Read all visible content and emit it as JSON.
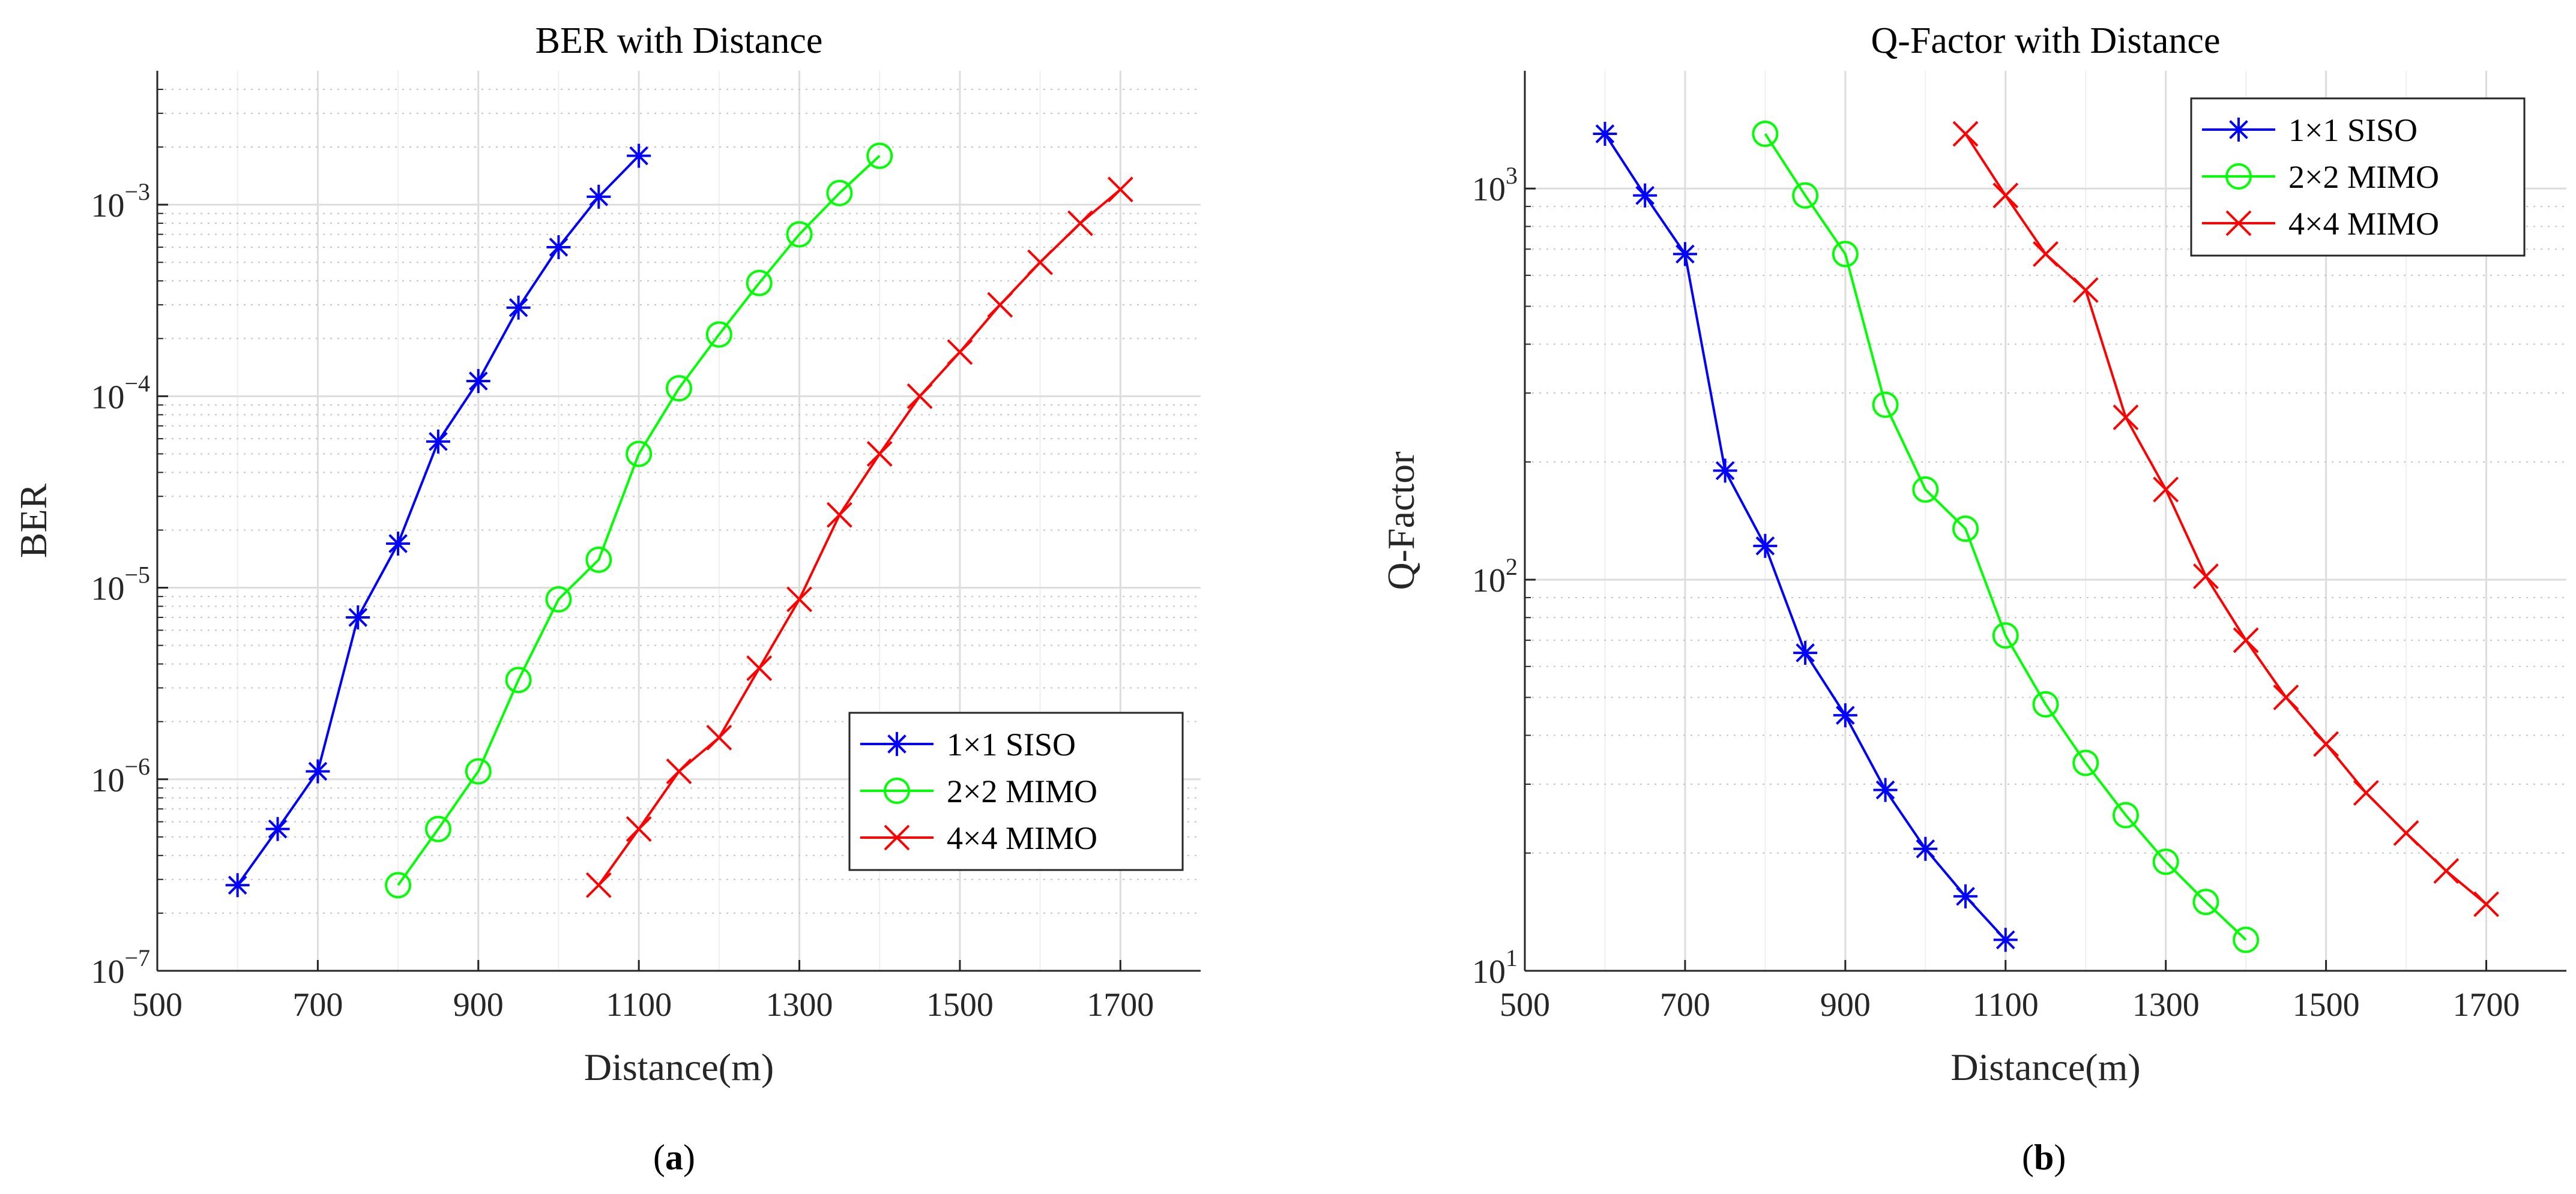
{
  "chart_data": [
    {
      "type": "line",
      "title": "BER with Distance",
      "xlabel": "Distance(m)",
      "ylabel": "BER",
      "xscale": "linear",
      "yscale": "log",
      "xlim": [
        500,
        1800
      ],
      "ylim": [
        1e-07,
        0.005
      ],
      "xticks": [
        500,
        700,
        900,
        1100,
        1300,
        1500,
        1700
      ],
      "yticks": [
        {
          "value": 1e-07,
          "base": "10",
          "exp": "−7"
        },
        {
          "value": 1e-06,
          "base": "10",
          "exp": "−6"
        },
        {
          "value": 1e-05,
          "base": "10",
          "exp": "−5"
        },
        {
          "value": 0.0001,
          "base": "10",
          "exp": "−4"
        },
        {
          "value": 0.001,
          "base": "10",
          "exp": "−3"
        }
      ],
      "grid": true,
      "legend_position": "lower-right",
      "series": [
        {
          "name": "1×1 SISO",
          "color": "#0000ff",
          "marker": "asterisk",
          "x": [
            600,
            650,
            700,
            750,
            800,
            850,
            900,
            950,
            1000,
            1050,
            1100
          ],
          "y": [
            2.8e-07,
            5.5e-07,
            1.1e-06,
            7e-06,
            1.7e-05,
            5.8e-05,
            0.00012,
            0.00029,
            0.0006,
            0.0011,
            0.0018
          ]
        },
        {
          "name": "2×2 MIMO",
          "color": "#00ff00",
          "marker": "circle",
          "x": [
            800,
            850,
            900,
            950,
            1000,
            1050,
            1100,
            1150,
            1200,
            1250,
            1300,
            1350,
            1400
          ],
          "y": [
            2.8e-07,
            5.5e-07,
            1.1e-06,
            3.3e-06,
            8.7e-06,
            1.4e-05,
            5e-05,
            0.00011,
            0.00021,
            0.00039,
            0.0007,
            0.00115,
            0.0018
          ]
        },
        {
          "name": "4×4 MIMO",
          "color": "#ff0000",
          "marker": "cross",
          "x": [
            1050,
            1100,
            1150,
            1200,
            1250,
            1300,
            1350,
            1400,
            1450,
            1500,
            1550,
            1600,
            1650,
            1700
          ],
          "y": [
            2.8e-07,
            5.5e-07,
            1.1e-06,
            1.65e-06,
            3.8e-06,
            8.7e-06,
            2.4e-05,
            5e-05,
            0.0001,
            0.00017,
            0.0003,
            0.0005,
            0.0008,
            0.0012
          ]
        }
      ]
    },
    {
      "type": "line",
      "title": "Q-Factor with Distance",
      "xlabel": "Distance(m)",
      "ylabel": "Q-Factor",
      "xscale": "linear",
      "yscale": "log",
      "xlim": [
        500,
        1800
      ],
      "ylim": [
        10,
        2000
      ],
      "xticks": [
        500,
        700,
        900,
        1100,
        1300,
        1500,
        1700
      ],
      "yticks": [
        {
          "value": 10,
          "base": "10",
          "exp": "1"
        },
        {
          "value": 100,
          "base": "10",
          "exp": "2"
        },
        {
          "value": 1000,
          "base": "10",
          "exp": "3"
        }
      ],
      "grid": true,
      "legend_position": "top-right",
      "series": [
        {
          "name": "1×1 SISO",
          "color": "#0000ff",
          "marker": "asterisk",
          "x": [
            600,
            650,
            700,
            750,
            800,
            850,
            900,
            950,
            1000,
            1050,
            1100
          ],
          "y": [
            1380,
            960,
            680,
            190,
            122,
            65,
            45,
            29,
            20.5,
            15.5,
            12
          ]
        },
        {
          "name": "2×2 MIMO",
          "color": "#00ff00",
          "marker": "circle",
          "x": [
            800,
            850,
            900,
            950,
            1000,
            1050,
            1100,
            1150,
            1200,
            1250,
            1300,
            1350,
            1400
          ],
          "y": [
            1380,
            960,
            680,
            280,
            170,
            135,
            72,
            48,
            34,
            25,
            19,
            15,
            12
          ]
        },
        {
          "name": "4×4 MIMO",
          "color": "#ff0000",
          "marker": "cross",
          "x": [
            1050,
            1100,
            1150,
            1200,
            1250,
            1300,
            1350,
            1400,
            1450,
            1500,
            1550,
            1600,
            1650,
            1700
          ],
          "y": [
            1380,
            960,
            680,
            550,
            260,
            170,
            102,
            70,
            50,
            38,
            28.5,
            22.5,
            18,
            14.8
          ]
        }
      ]
    }
  ],
  "captions": {
    "a": {
      "open": "(",
      "letter": "a",
      "close": ")"
    },
    "b": {
      "open": "(",
      "letter": "b",
      "close": ")"
    }
  }
}
